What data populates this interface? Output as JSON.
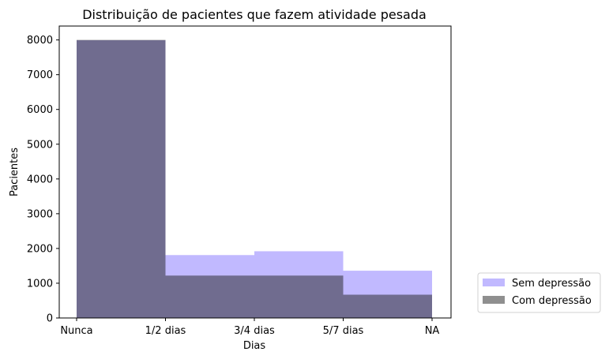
{
  "chart_data": {
    "type": "histogram",
    "title": "Distribuição de pacientes que fazem atividade pesada",
    "xlabel": "Dias",
    "ylabel": "Pacientes",
    "x_ticks": [
      "Nunca",
      "1/2 dias",
      "3/4 dias",
      "5/7 dias",
      "NA"
    ],
    "y_ticks": [
      0,
      1000,
      2000,
      3000,
      4000,
      5000,
      6000,
      7000,
      8000
    ],
    "ylim": [
      0,
      8400
    ],
    "bins": [
      {
        "from": "Nunca",
        "to": "1/2 dias"
      },
      {
        "from": "1/2 dias",
        "to": "3/4 dias"
      },
      {
        "from": "3/4 dias",
        "to": "5/7 dias"
      },
      {
        "from": "5/7 dias",
        "to": "NA"
      }
    ],
    "series": [
      {
        "name": "Sem depressão",
        "color": "#a79bff",
        "opacity": 0.7,
        "values": [
          7990,
          1810,
          1920,
          1360
        ]
      },
      {
        "name": "Com depressão",
        "color": "#1f1f1f",
        "opacity": 0.5,
        "values": [
          8000,
          1220,
          1220,
          670
        ]
      }
    ],
    "legend_position": "outside-right-bottom",
    "grid": false
  }
}
